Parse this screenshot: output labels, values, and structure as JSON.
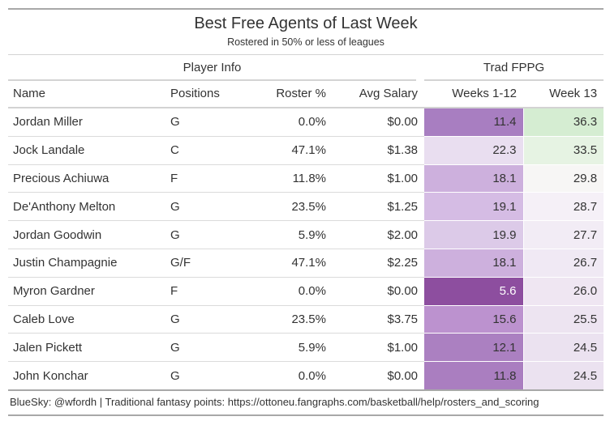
{
  "title": "Best Free Agents of Last Week",
  "subtitle": "Rostered in 50% or less of leagues",
  "spanners": {
    "player_info": "Player Info",
    "trad_fppg": "Trad FPPG"
  },
  "columns": [
    {
      "key": "name",
      "label": "Name",
      "align": "left"
    },
    {
      "key": "positions",
      "label": "Positions",
      "align": "left"
    },
    {
      "key": "roster_pct",
      "label": "Roster %",
      "align": "right"
    },
    {
      "key": "avg_salary",
      "label": "Avg Salary",
      "align": "right"
    },
    {
      "key": "weeks_1_12",
      "label": "Weeks 1-12",
      "align": "right"
    },
    {
      "key": "week_13",
      "label": "Week 13",
      "align": "right"
    }
  ],
  "rows": [
    {
      "name": "Jordan Miller",
      "positions": "G",
      "roster_pct": "0.0%",
      "avg_salary": "$0.00",
      "weeks_1_12": "11.4",
      "week_13": "36.3",
      "weeks_1_12_bg": "#A87EC1",
      "weeks_1_12_fg": "#333333",
      "week_13_bg": "#D5EDD2",
      "week_13_fg": "#333333"
    },
    {
      "name": "Jock Landale",
      "positions": "C",
      "roster_pct": "47.1%",
      "avg_salary": "$1.38",
      "weeks_1_12": "22.3",
      "week_13": "33.5",
      "weeks_1_12_bg": "#E9DEF0",
      "weeks_1_12_fg": "#333333",
      "week_13_bg": "#E6F3E3",
      "week_13_fg": "#333333"
    },
    {
      "name": "Precious Achiuwa",
      "positions": "F",
      "roster_pct": "11.8%",
      "avg_salary": "$1.00",
      "weeks_1_12": "18.1",
      "week_13": "29.8",
      "weeks_1_12_bg": "#CDB0DD",
      "weeks_1_12_fg": "#333333",
      "week_13_bg": "#F7F6F5",
      "week_13_fg": "#333333"
    },
    {
      "name": "De'Anthony Melton",
      "positions": "G",
      "roster_pct": "23.5%",
      "avg_salary": "$1.25",
      "weeks_1_12": "19.1",
      "week_13": "28.7",
      "weeks_1_12_bg": "#D5BCE4",
      "weeks_1_12_fg": "#333333",
      "week_13_bg": "#F5F0F7",
      "week_13_fg": "#333333"
    },
    {
      "name": "Jordan Goodwin",
      "positions": "G",
      "roster_pct": "5.9%",
      "avg_salary": "$2.00",
      "weeks_1_12": "19.9",
      "week_13": "27.7",
      "weeks_1_12_bg": "#DCCAE8",
      "weeks_1_12_fg": "#333333",
      "week_13_bg": "#F2ECF5",
      "week_13_fg": "#333333"
    },
    {
      "name": "Justin Champagnie",
      "positions": "G/F",
      "roster_pct": "47.1%",
      "avg_salary": "$2.25",
      "weeks_1_12": "18.1",
      "week_13": "26.7",
      "weeks_1_12_bg": "#CDB0DD",
      "weeks_1_12_fg": "#333333",
      "week_13_bg": "#F0E9F4",
      "week_13_fg": "#333333"
    },
    {
      "name": "Myron Gardner",
      "positions": "F",
      "roster_pct": "0.0%",
      "avg_salary": "$0.00",
      "weeks_1_12": "5.6",
      "week_13": "26.0",
      "weeks_1_12_bg": "#8D4E9F",
      "weeks_1_12_fg": "#FFFFFF",
      "week_13_bg": "#EFE6F2",
      "week_13_fg": "#333333"
    },
    {
      "name": "Caleb Love",
      "positions": "G",
      "roster_pct": "23.5%",
      "avg_salary": "$3.75",
      "weeks_1_12": "15.6",
      "week_13": "25.5",
      "weeks_1_12_bg": "#BC92CF",
      "weeks_1_12_fg": "#333333",
      "week_13_bg": "#EDE4F1",
      "week_13_fg": "#333333"
    },
    {
      "name": "Jalen Pickett",
      "positions": "G",
      "roster_pct": "5.9%",
      "avg_salary": "$1.00",
      "weeks_1_12": "12.1",
      "week_13": "24.5",
      "weeks_1_12_bg": "#AB80C1",
      "weeks_1_12_fg": "#333333",
      "week_13_bg": "#EBE2F0",
      "week_13_fg": "#333333"
    },
    {
      "name": "John Konchar",
      "positions": "G",
      "roster_pct": "0.0%",
      "avg_salary": "$0.00",
      "weeks_1_12": "11.8",
      "week_13": "24.5",
      "weeks_1_12_bg": "#AA7EC0",
      "weeks_1_12_fg": "#333333",
      "week_13_bg": "#EBE2F0",
      "week_13_fg": "#333333"
    }
  ],
  "footer": "BlueSky: @wfordh | Traditional fantasy points: https://ottoneu.fangraphs.com/basketball/help/rosters_and_scoring",
  "colors": {
    "text": "#333333",
    "border_light": "#D3D3D3",
    "border_medium": "#A8A8A8",
    "row_divider": "#DBDBDB",
    "heat_purple_dark": "#8D4E9F",
    "heat_purple_mid": "#A87EC1",
    "heat_purple_light": "#E9DEF0",
    "heat_green_light": "#D5EDD2",
    "heat_neutral": "#F7F6F5"
  },
  "chart_data": {
    "type": "table",
    "title": "Best Free Agents of Last Week",
    "subtitle": "Rostered in 50% or less of leagues",
    "column_groups": [
      {
        "label": "Player Info",
        "span": 4
      },
      {
        "label": "Trad FPPG",
        "span": 2
      }
    ],
    "columns": [
      "Name",
      "Positions",
      "Roster %",
      "Avg Salary",
      "Weeks 1-12",
      "Week 13"
    ],
    "rows": [
      [
        "Jordan Miller",
        "G",
        "0.0%",
        "$0.00",
        11.4,
        36.3
      ],
      [
        "Jock Landale",
        "C",
        "47.1%",
        "$1.38",
        22.3,
        33.5
      ],
      [
        "Precious Achiuwa",
        "F",
        "11.8%",
        "$1.00",
        18.1,
        29.8
      ],
      [
        "De'Anthony Melton",
        "G",
        "23.5%",
        "$1.25",
        19.1,
        28.7
      ],
      [
        "Jordan Goodwin",
        "G",
        "5.9%",
        "$2.00",
        19.9,
        27.7
      ],
      [
        "Justin Champagnie",
        "G/F",
        "47.1%",
        "$2.25",
        18.1,
        26.7
      ],
      [
        "Myron Gardner",
        "F",
        "0.0%",
        "$0.00",
        5.6,
        26.0
      ],
      [
        "Caleb Love",
        "G",
        "23.5%",
        "$3.75",
        15.6,
        25.5
      ],
      [
        "Jalen Pickett",
        "G",
        "5.9%",
        "$1.00",
        12.1,
        24.5
      ],
      [
        "John Konchar",
        "G",
        "0.0%",
        "$0.00",
        11.8,
        24.5
      ]
    ],
    "layout_hints": {
      "heatmap_columns": [
        "Weeks 1-12",
        "Week 13"
      ],
      "heatmap_scale": "purple (low) to white to green (high) diverging",
      "sorted_by": "Week 13 descending"
    },
    "source_note": "BlueSky: @wfordh | Traditional fantasy points: https://ottoneu.fangraphs.com/basketball/help/rosters_and_scoring"
  }
}
